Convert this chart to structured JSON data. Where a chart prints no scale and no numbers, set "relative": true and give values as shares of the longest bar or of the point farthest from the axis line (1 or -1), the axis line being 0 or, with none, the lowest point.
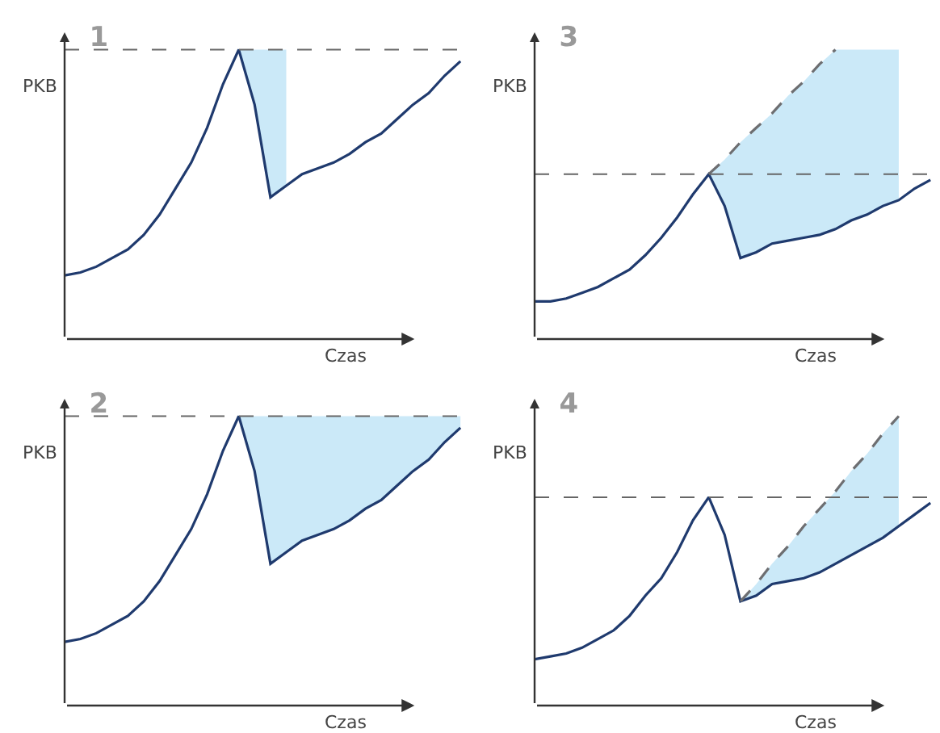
{
  "chart_data": [
    {
      "type": "line",
      "title": "1",
      "xlabel": "Czas",
      "ylabel": "PKB",
      "relative": true,
      "categories": [
        null,
        null,
        null,
        null,
        null,
        null,
        null,
        null,
        null,
        null,
        null,
        null,
        null,
        null,
        null,
        null,
        null,
        null,
        null,
        null,
        null,
        null,
        null,
        null,
        null,
        null
      ],
      "series": [
        {
          "color": "#1f3a6e",
          "values": [
            0.22,
            0.23,
            0.25,
            0.28,
            0.31,
            0.36,
            0.43,
            0.52,
            0.61,
            0.73,
            0.88,
            1,
            0.81,
            0.49,
            0.53,
            0.57,
            0.59,
            0.61,
            0.64,
            0.68,
            0.71,
            0.76,
            0.81,
            0.85,
            0.91,
            0.96
          ],
          "lower": [
            null,
            null,
            null,
            null,
            null,
            null,
            null,
            null,
            null,
            null,
            null,
            1,
            0.81,
            0.49,
            0.53,
            null,
            null,
            null,
            null,
            null,
            null,
            null,
            null,
            null,
            null,
            null
          ],
          "upper": [
            null,
            null,
            null,
            null,
            null,
            null,
            null,
            null,
            null,
            null,
            null,
            1,
            1,
            1,
            1,
            null,
            null,
            null,
            null,
            null,
            null,
            null,
            null,
            null,
            null,
            null
          ]
        }
      ],
      "ref_lines": [
        {
          "axis": "y",
          "value": 1,
          "color": "#666666",
          "line_style": "dashed"
        }
      ]
    },
    {
      "type": "line",
      "title": "3",
      "xlabel": "Czas",
      "ylabel": "PKB",
      "relative": true,
      "categories": [
        null,
        null,
        null,
        null,
        null,
        null,
        null,
        null,
        null,
        null,
        null,
        null,
        null,
        null,
        null,
        null,
        null,
        null,
        null,
        null,
        null,
        null,
        null,
        null,
        null,
        null
      ],
      "series": [
        {
          "color": "#1f3a6e",
          "values": [
            0.13,
            0.13,
            0.14,
            0.16,
            0.18,
            0.21,
            0.24,
            0.29,
            0.35,
            0.42,
            0.5,
            0.57,
            0.46,
            0.28,
            0.3,
            0.33,
            0.34,
            0.35,
            0.36,
            0.38,
            0.41,
            0.43,
            0.46,
            0.48,
            0.52,
            0.55
          ],
          "lower": [
            null,
            null,
            null,
            null,
            null,
            null,
            null,
            null,
            null,
            null,
            null,
            0.57,
            0.46,
            0.28,
            0.3,
            0.33,
            0.34,
            0.35,
            0.36,
            0.38,
            0.41,
            0.43,
            0.46,
            0.48,
            null,
            null
          ],
          "upper": [
            null,
            null,
            null,
            null,
            null,
            null,
            null,
            null,
            null,
            null,
            null,
            0.57,
            0.62,
            0.68,
            0.73,
            0.78,
            0.84,
            0.89,
            0.95,
            1,
            1,
            1,
            1,
            1,
            null,
            null
          ]
        },
        {
          "type": "line",
          "color": "#6d6e71",
          "line_style": "dashed",
          "values": [
            null,
            null,
            null,
            null,
            null,
            null,
            null,
            null,
            null,
            null,
            null,
            0.57,
            0.62,
            0.68,
            0.73,
            0.78,
            0.84,
            0.89,
            0.95,
            1,
            null,
            null,
            null,
            null,
            null,
            null
          ]
        }
      ],
      "ref_lines": [
        {
          "axis": "y",
          "value": 0.57,
          "color": "#666666",
          "line_style": "dashed"
        }
      ]
    },
    {
      "type": "line",
      "title": "2",
      "xlabel": "Czas",
      "ylabel": "PKB",
      "relative": true,
      "categories": [
        null,
        null,
        null,
        null,
        null,
        null,
        null,
        null,
        null,
        null,
        null,
        null,
        null,
        null,
        null,
        null,
        null,
        null,
        null,
        null,
        null,
        null,
        null,
        null,
        null,
        null
      ],
      "series": [
        {
          "color": "#1f3a6e",
          "values": [
            0.22,
            0.23,
            0.25,
            0.28,
            0.31,
            0.36,
            0.43,
            0.52,
            0.61,
            0.73,
            0.88,
            1,
            0.81,
            0.49,
            0.53,
            0.57,
            0.59,
            0.61,
            0.64,
            0.68,
            0.71,
            0.76,
            0.81,
            0.85,
            0.91,
            0.96
          ],
          "lower": [
            null,
            null,
            null,
            null,
            null,
            null,
            null,
            null,
            null,
            null,
            null,
            1,
            0.81,
            0.49,
            0.53,
            0.57,
            0.59,
            0.61,
            0.64,
            0.68,
            0.71,
            0.76,
            0.81,
            0.85,
            0.91,
            0.96
          ],
          "upper": [
            null,
            null,
            null,
            null,
            null,
            null,
            null,
            null,
            null,
            null,
            null,
            1,
            1,
            1,
            1,
            1,
            1,
            1,
            1,
            1,
            1,
            1,
            1,
            1,
            1,
            1
          ]
        }
      ],
      "ref_lines": [
        {
          "axis": "y",
          "value": 1,
          "color": "#666666",
          "line_style": "dashed"
        }
      ]
    },
    {
      "type": "line",
      "title": "4",
      "xlabel": "Czas",
      "ylabel": "PKB",
      "relative": true,
      "categories": [
        null,
        null,
        null,
        null,
        null,
        null,
        null,
        null,
        null,
        null,
        null,
        null,
        null,
        null,
        null,
        null,
        null,
        null,
        null,
        null,
        null,
        null,
        null,
        null,
        null,
        null
      ],
      "series": [
        {
          "color": "#1f3a6e",
          "values": [
            0.16,
            0.17,
            0.18,
            0.2,
            0.23,
            0.26,
            0.31,
            0.38,
            0.44,
            0.53,
            0.64,
            0.72,
            0.59,
            0.36,
            0.38,
            0.42,
            0.43,
            0.44,
            0.46,
            0.49,
            0.52,
            0.55,
            0.58,
            0.62,
            0.66,
            0.7
          ],
          "lower": [
            null,
            null,
            null,
            null,
            null,
            null,
            null,
            null,
            null,
            null,
            null,
            null,
            null,
            0.36,
            0.38,
            0.42,
            0.43,
            0.44,
            0.46,
            0.49,
            0.52,
            0.55,
            0.58,
            0.62,
            null,
            null
          ],
          "upper": [
            null,
            null,
            null,
            null,
            null,
            null,
            null,
            null,
            null,
            null,
            null,
            null,
            null,
            0.36,
            0.42,
            0.49,
            0.55,
            0.62,
            0.68,
            0.74,
            0.81,
            0.87,
            0.94,
            1,
            null,
            null
          ]
        },
        {
          "type": "line",
          "color": "#6d6e71",
          "line_style": "dashed",
          "values": [
            null,
            null,
            null,
            null,
            null,
            null,
            null,
            null,
            null,
            null,
            null,
            null,
            null,
            0.36,
            0.42,
            0.49,
            0.55,
            0.62,
            0.68,
            0.74,
            0.81,
            0.87,
            0.94,
            1,
            null,
            null
          ]
        }
      ],
      "ref_lines": [
        {
          "axis": "y",
          "value": 0.72,
          "color": "#666666",
          "line_style": "dashed"
        }
      ]
    }
  ]
}
